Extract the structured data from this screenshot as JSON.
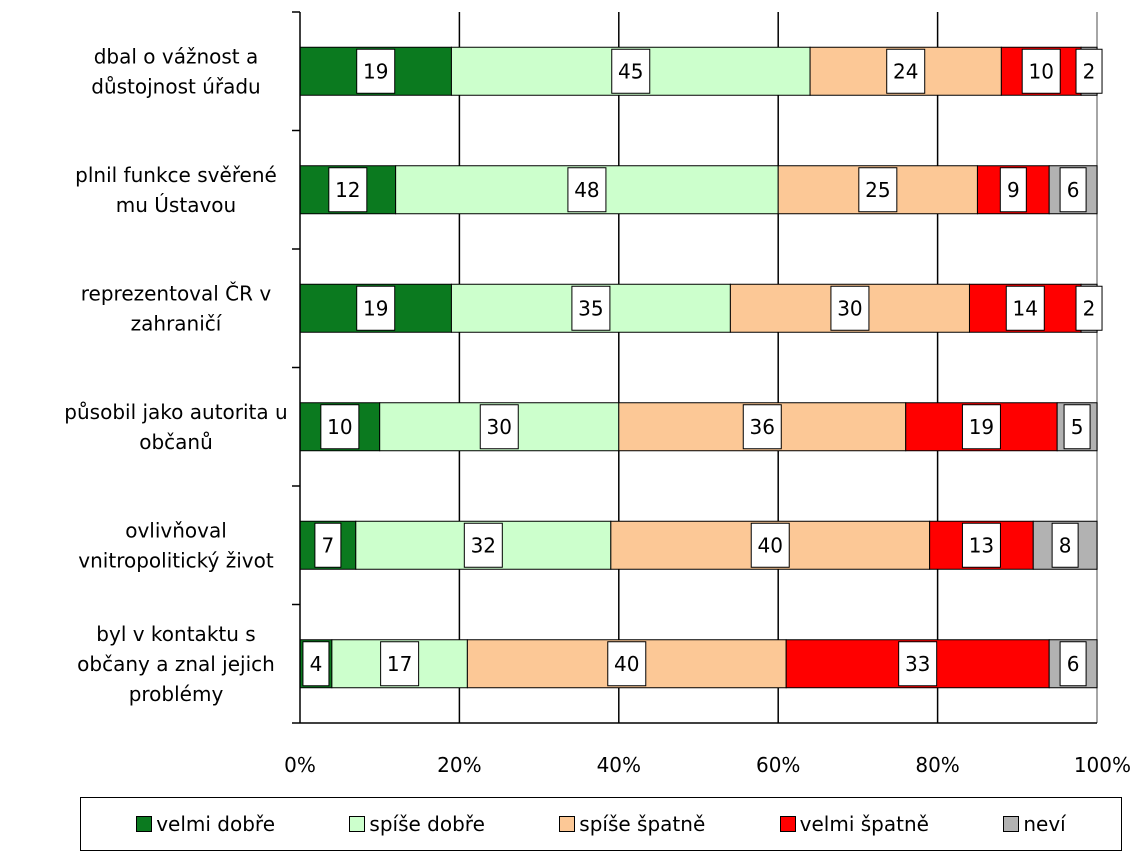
{
  "chart_data": {
    "type": "bar",
    "orientation": "horizontal",
    "stacked": "percent",
    "categories": [
      [
        "dbal o vážnost a",
        "důstojnost úřadu"
      ],
      [
        "plnil funkce svěřené",
        "mu Ústavou"
      ],
      [
        "reprezentoval ČR v",
        "zahraničí"
      ],
      [
        "působil jako autorita u",
        "občanů"
      ],
      [
        "ovlivňoval",
        "vnitropolitický život"
      ],
      [
        "byl v kontaktu s",
        "občany a znal jejich",
        "problémy"
      ]
    ],
    "series": [
      {
        "name": "velmi dobře",
        "color": "#0b7a1f",
        "values": [
          19,
          12,
          19,
          10,
          7,
          4
        ]
      },
      {
        "name": "spíše dobře",
        "color": "#ccffcc",
        "values": [
          45,
          48,
          35,
          30,
          32,
          17
        ]
      },
      {
        "name": "spíše špatně",
        "color": "#fcc896",
        "values": [
          24,
          25,
          30,
          36,
          40,
          40
        ]
      },
      {
        "name": "velmi špatně",
        "color": "#ff0000",
        "values": [
          10,
          9,
          14,
          19,
          13,
          33
        ]
      },
      {
        "name": "neví",
        "color": "#b2b2b2",
        "values": [
          2,
          6,
          2,
          5,
          8,
          6
        ]
      }
    ],
    "xlim": [
      0,
      100
    ],
    "xticks": [
      "0%",
      "20%",
      "40%",
      "60%",
      "80%",
      "100%"
    ],
    "grid": true,
    "legend": "bottom"
  }
}
